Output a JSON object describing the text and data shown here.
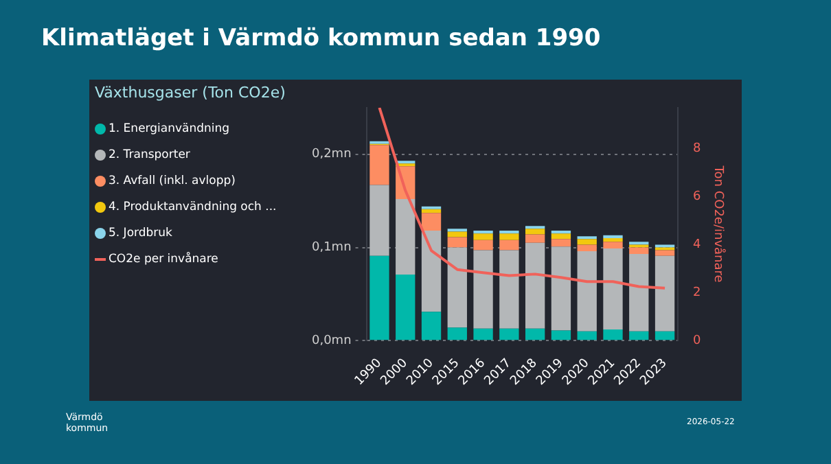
{
  "chart_data": {
    "type": "bar",
    "title": "Klimatläget i Värmdö kommun sedan 1990",
    "subtitle": "Växthusgaser (Ton CO2e)",
    "y2label": "Ton CO2e/invånare",
    "categories": [
      "1990",
      "2000",
      "2010",
      "2015",
      "2016",
      "2017",
      "2018",
      "2019",
      "2020",
      "2021",
      "2022",
      "2023"
    ],
    "stacked": true,
    "series": [
      {
        "name": "1. Energianvändning",
        "color": "#01b8aa",
        "values": [
          0.091,
          0.071,
          0.031,
          0.014,
          0.013,
          0.013,
          0.013,
          0.011,
          0.01,
          0.012,
          0.01,
          0.01
        ]
      },
      {
        "name": "2. Transporter",
        "color": "#b4b7b9",
        "values": [
          0.076,
          0.081,
          0.087,
          0.086,
          0.084,
          0.084,
          0.092,
          0.09,
          0.086,
          0.087,
          0.083,
          0.081
        ]
      },
      {
        "name": "3. Avfall (inkl. avlopp)",
        "color": "#fd8d62",
        "values": [
          0.043,
          0.035,
          0.019,
          0.011,
          0.011,
          0.011,
          0.009,
          0.008,
          0.007,
          0.007,
          0.007,
          0.006
        ]
      },
      {
        "name": "4. Produktanvändning och ...",
        "color": "#f2c80f",
        "values": [
          0.001,
          0.003,
          0.004,
          0.006,
          0.007,
          0.007,
          0.006,
          0.006,
          0.006,
          0.004,
          0.003,
          0.003
        ]
      },
      {
        "name": "5. Jordbruk",
        "color": "#8ad4eb",
        "values": [
          0.003,
          0.003,
          0.003,
          0.003,
          0.003,
          0.003,
          0.003,
          0.003,
          0.003,
          0.003,
          0.003,
          0.003
        ]
      },
      {
        "name": "CO2e per invånare",
        "type": "line",
        "axis": "y2",
        "color": "#f0625a",
        "values": [
          9.7,
          6.25,
          3.75,
          2.96,
          2.83,
          2.71,
          2.77,
          2.63,
          2.46,
          2.46,
          2.25,
          2.19
        ]
      }
    ],
    "ylim": [
      0,
      0.25
    ],
    "yticks": [
      {
        "value": 0,
        "label": "0,0mn"
      },
      {
        "value": 0.1,
        "label": "0,1mn"
      },
      {
        "value": 0.2,
        "label": "0,2mn"
      }
    ],
    "y2lim": [
      0,
      9.7
    ],
    "y2ticks": [
      0,
      2,
      4,
      6,
      8
    ],
    "grid": "y",
    "legend": "left",
    "marker": "none",
    "annotations": [
      "Värmdö kommun",
      "2026-05-22"
    ]
  }
}
